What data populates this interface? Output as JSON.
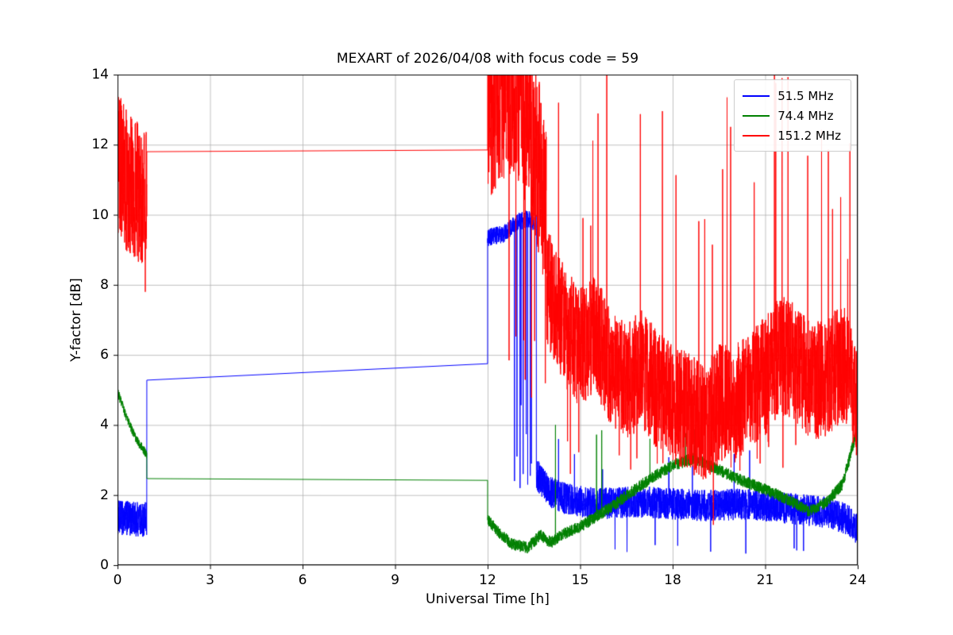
{
  "chart_data": {
    "type": "line",
    "title": "MEXART of 2026/04/08 with focus code = 59",
    "xlabel": "Universal Time [h]",
    "ylabel": "Y-factor [dB]",
    "xlim": [
      0,
      24
    ],
    "ylim": [
      0,
      14
    ],
    "xticks": [
      0,
      3,
      6,
      9,
      12,
      15,
      18,
      21,
      24
    ],
    "yticks": [
      0,
      2,
      4,
      6,
      8,
      10,
      12,
      14
    ],
    "grid": true,
    "legend_position": "upper right",
    "series": [
      {
        "name": "51.5 MHz",
        "color": "#0000ff",
        "segments": [
          {
            "mode": "noise",
            "t0": 0,
            "t1": 0.95,
            "dt": 0.004,
            "amp": 0.5,
            "mean": [
              [
                0,
                1.35
              ],
              [
                0.95,
                1.3
              ]
            ]
          },
          {
            "mode": "line",
            "points": [
              [
                0.95,
                5.28
              ],
              [
                12,
                5.75
              ]
            ]
          },
          {
            "mode": "noise",
            "t0": 12,
            "t1": 13.58,
            "dt": 0.004,
            "amp": 0.25,
            "mean": [
              [
                12,
                9.35
              ],
              [
                12.5,
                9.45
              ],
              [
                13.0,
                9.8
              ],
              [
                13.3,
                9.9
              ],
              [
                13.58,
                9.75
              ]
            ],
            "downspikes": {
              "t0": 12.75,
              "t1": 13.5,
              "prob": 0.02,
              "ymin": 2.2,
              "ymax": 6.0
            }
          },
          {
            "mode": "noise",
            "t0": 13.58,
            "t1": 24,
            "dt": 0.004,
            "amp": 0.45,
            "mean": [
              [
                13.58,
                2.6
              ],
              [
                14.0,
                2.1
              ],
              [
                14.5,
                1.9
              ],
              [
                15.5,
                1.75
              ],
              [
                17,
                1.8
              ],
              [
                19,
                1.7
              ],
              [
                20.5,
                1.75
              ],
              [
                22,
                1.6
              ],
              [
                23,
                1.5
              ],
              [
                23.7,
                1.3
              ],
              [
                24,
                1.0
              ]
            ],
            "upspikes": {
              "t0": 14,
              "t1": 23.5,
              "prob": 0.005,
              "ymin": 2.7,
              "ymax": 3.4
            },
            "downspikes": {
              "t0": 16,
              "t1": 24,
              "prob": 0.004,
              "ymin": 0.3,
              "ymax": 0.7
            }
          }
        ],
        "spikes": [
          [
            12.87,
            2.4
          ],
          [
            12.95,
            3.1
          ],
          [
            13.05,
            2.2
          ],
          [
            13.15,
            2.6
          ],
          [
            13.3,
            2.3
          ],
          [
            13.42,
            2.9
          ],
          [
            14.3,
            3.6
          ]
        ]
      },
      {
        "name": "74.4 MHz",
        "color": "#008000",
        "segments": [
          {
            "mode": "noise",
            "t0": 0,
            "t1": 0.95,
            "dt": 0.004,
            "amp": 0.13,
            "mean": [
              [
                0,
                4.95
              ],
              [
                0.3,
                4.2
              ],
              [
                0.6,
                3.6
              ],
              [
                0.95,
                3.15
              ]
            ]
          },
          {
            "mode": "line",
            "points": [
              [
                0.95,
                2.47
              ],
              [
                12,
                2.42
              ]
            ]
          },
          {
            "mode": "noise",
            "t0": 12,
            "t1": 24,
            "dt": 0.004,
            "amp": 0.17,
            "mean": [
              [
                12,
                1.3
              ],
              [
                12.4,
                0.9
              ],
              [
                12.8,
                0.6
              ],
              [
                13.3,
                0.5
              ],
              [
                13.7,
                0.85
              ],
              [
                14.05,
                0.65
              ],
              [
                14.5,
                0.9
              ],
              [
                15,
                1.1
              ],
              [
                16,
                1.65
              ],
              [
                17,
                2.3
              ],
              [
                18,
                2.85
              ],
              [
                18.7,
                3.05
              ],
              [
                19.3,
                2.8
              ],
              [
                20,
                2.5
              ],
              [
                21,
                2.15
              ],
              [
                21.8,
                1.85
              ],
              [
                22.4,
                1.55
              ],
              [
                23,
                1.8
              ],
              [
                23.5,
                2.3
              ],
              [
                24,
                3.9
              ]
            ],
            "upspikes": {
              "t0": 14,
              "t1": 18.8,
              "prob": 0.004,
              "ymin": 3.4,
              "ymax": 4.1
            }
          }
        ],
        "spikes": [
          [
            14.2,
            4.0
          ],
          [
            15.7,
            3.85
          ]
        ]
      },
      {
        "name": "151.2 MHz",
        "color": "#ff0000",
        "segments": [
          {
            "mode": "noise",
            "t0": 0,
            "t1": 0.95,
            "dt": 0.004,
            "amp": 2.0,
            "mean": [
              [
                0,
                11.5
              ],
              [
                0.2,
                11.0
              ],
              [
                0.5,
                10.8
              ],
              [
                0.8,
                10.5
              ],
              [
                0.95,
                10.6
              ]
            ],
            "upspikes": {
              "t0": 0,
              "t1": 0.3,
              "prob": 0.03,
              "ymin": 12.8,
              "ymax": 13.6
            }
          },
          {
            "mode": "line",
            "points": [
              [
                0.95,
                11.8
              ],
              [
                12,
                11.85
              ]
            ]
          },
          {
            "mode": "noise",
            "t0": 12,
            "t1": 13.9,
            "dt": 0.004,
            "amp": 2.6,
            "mean": [
              [
                12,
                13.0
              ],
              [
                12.5,
                13.6
              ],
              [
                12.9,
                13.8
              ],
              [
                13.2,
                12.8
              ],
              [
                13.5,
                12.0
              ],
              [
                13.9,
                10.2
              ]
            ],
            "downspikes": {
              "t0": 12.6,
              "t1": 13.9,
              "prob": 0.02,
              "ymin": 4.5,
              "ymax": 7.5
            }
          },
          {
            "mode": "noise",
            "t0": 13.9,
            "t1": 24,
            "dt": 0.004,
            "amp": 1.7,
            "mean": [
              [
                13.9,
                8.0
              ],
              [
                14.5,
                6.8
              ],
              [
                15,
                6.2
              ],
              [
                15.5,
                6.6
              ],
              [
                16,
                5.6
              ],
              [
                16.5,
                5.2
              ],
              [
                17,
                5.6
              ],
              [
                17.5,
                5.0
              ],
              [
                18,
                4.6
              ],
              [
                18.5,
                4.4
              ],
              [
                19,
                4.0
              ],
              [
                19.5,
                4.6
              ],
              [
                20,
                4.6
              ],
              [
                20.5,
                5.0
              ],
              [
                21,
                5.4
              ],
              [
                21.5,
                6.0
              ],
              [
                22,
                5.8
              ],
              [
                22.5,
                5.2
              ],
              [
                23,
                5.4
              ],
              [
                23.6,
                5.8
              ],
              [
                24,
                4.5
              ]
            ],
            "upspikes": {
              "t0": 14,
              "t1": 24,
              "prob": 0.012,
              "ymin": 8.5,
              "ymax": 14.5
            },
            "downspikes": {
              "t0": 14.5,
              "t1": 23.5,
              "prob": 0.008,
              "ymin": 2.6,
              "ymax": 3.6
            }
          }
        ],
        "spikes": [
          [
            0.9,
            7.8
          ],
          [
            19.32,
            1.15
          ],
          [
            19.62,
            11.3
          ],
          [
            21.3,
            14.4
          ],
          [
            21.55,
            13.9
          ],
          [
            23.45,
            10.5
          ],
          [
            23.99,
            1.0
          ]
        ]
      }
    ]
  }
}
